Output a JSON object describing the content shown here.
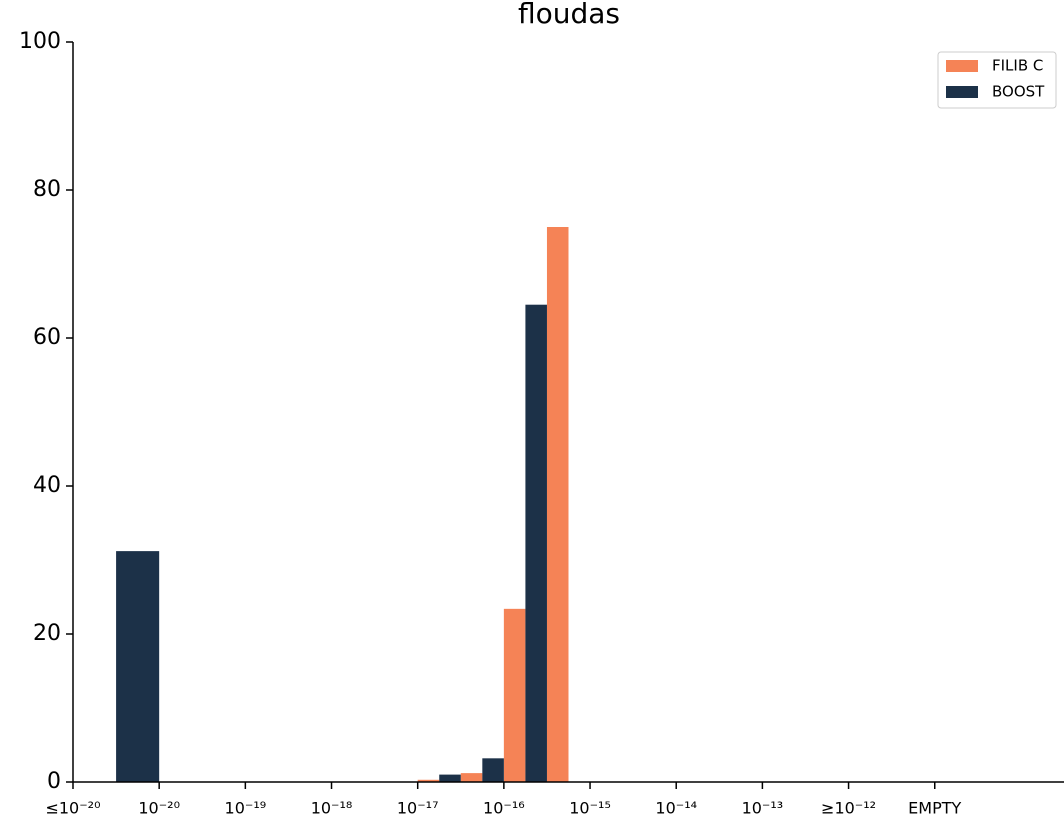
{
  "chart_data": {
    "type": "histogram",
    "title": "floudas",
    "xlim": [
      0,
      11.5
    ],
    "xticks": [
      {
        "value": 0,
        "label": "≤10⁻²⁰"
      },
      {
        "value": 1,
        "label": "10⁻²⁰"
      },
      {
        "value": 2,
        "label": "10⁻¹⁹"
      },
      {
        "value": 3,
        "label": "10⁻¹⁸"
      },
      {
        "value": 4,
        "label": "10⁻¹⁷"
      },
      {
        "value": 5,
        "label": "10⁻¹⁶"
      },
      {
        "value": 6,
        "label": "10⁻¹⁵"
      },
      {
        "value": 7,
        "label": "10⁻¹⁴"
      },
      {
        "value": 8,
        "label": "10⁻¹³"
      },
      {
        "value": 9,
        "label": "≥10⁻¹²"
      },
      {
        "value": 10,
        "label": "EMPTY"
      }
    ],
    "ylim": [
      0,
      100
    ],
    "yticks": [
      0,
      20,
      40,
      60,
      80,
      100
    ],
    "legend": "upper right",
    "series": [
      {
        "name": "FILIB C",
        "color": "#f58356",
        "bins": [
          4.0,
          4.25,
          4.5,
          4.75,
          5.0,
          5.25,
          5.5,
          5.75
        ],
        "values": [
          0.3,
          0,
          1.2,
          0,
          23.4,
          0,
          75
        ]
      },
      {
        "name": "BOOST",
        "color": "#1c3148",
        "bins": [
          0.5,
          1.0,
          4.25,
          4.5,
          4.75,
          5.0,
          5.25,
          5.5
        ],
        "values": [
          31.2,
          0,
          1.0,
          0,
          3.2,
          0,
          64.5
        ]
      }
    ]
  }
}
